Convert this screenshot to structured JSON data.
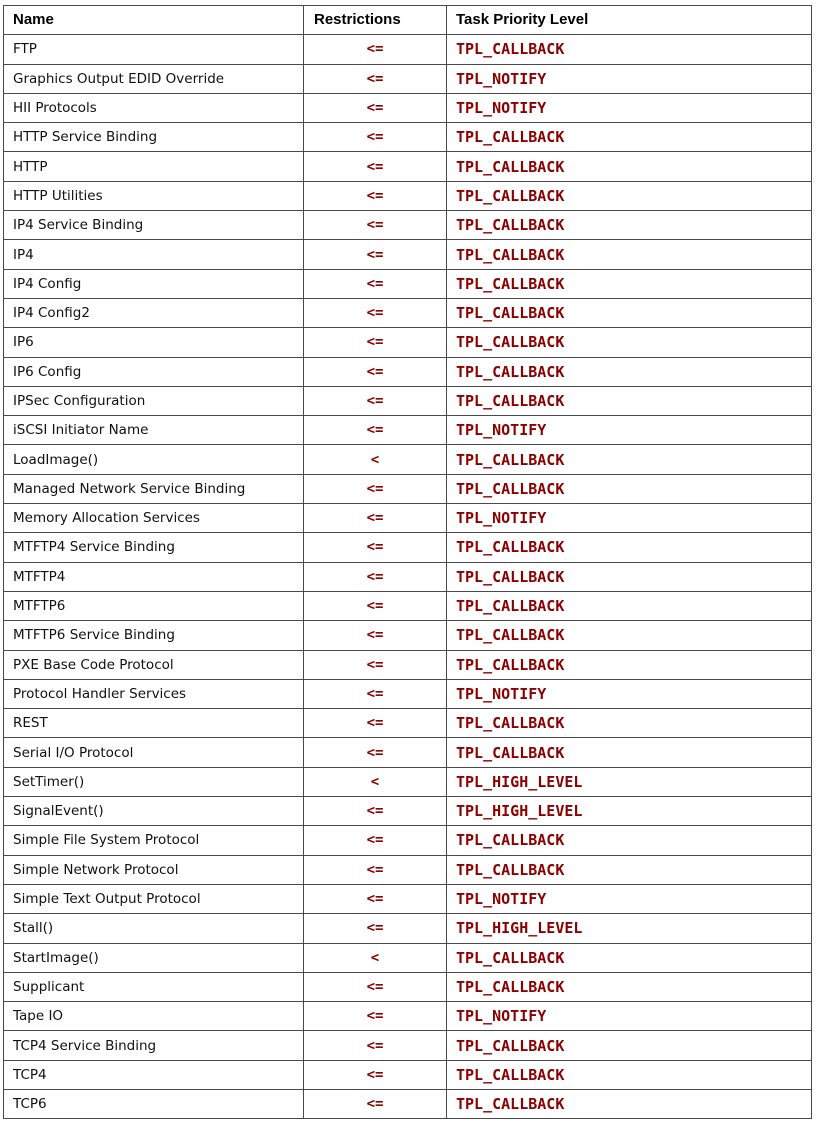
{
  "table": {
    "headers": [
      "Name",
      "Restrictions",
      "Task Priority Level"
    ],
    "rows": [
      {
        "name": "FTP",
        "restriction": "<=",
        "tpl": "TPL_CALLBACK"
      },
      {
        "name": "Graphics Output EDID Override",
        "restriction": "<=",
        "tpl": "TPL_NOTIFY"
      },
      {
        "name": "HII Protocols",
        "restriction": "<=",
        "tpl": "TPL_NOTIFY"
      },
      {
        "name": "HTTP Service Binding",
        "restriction": "<=",
        "tpl": "TPL_CALLBACK"
      },
      {
        "name": "HTTP",
        "restriction": "<=",
        "tpl": "TPL_CALLBACK"
      },
      {
        "name": "HTTP Utilities",
        "restriction": "<=",
        "tpl": "TPL_CALLBACK"
      },
      {
        "name": "IP4 Service Binding",
        "restriction": "<=",
        "tpl": "TPL_CALLBACK"
      },
      {
        "name": "IP4",
        "restriction": "<=",
        "tpl": "TPL_CALLBACK"
      },
      {
        "name": "IP4 Config",
        "restriction": "<=",
        "tpl": "TPL_CALLBACK"
      },
      {
        "name": "IP4 Config2",
        "restriction": "<=",
        "tpl": "TPL_CALLBACK"
      },
      {
        "name": "IP6",
        "restriction": "<=",
        "tpl": "TPL_CALLBACK"
      },
      {
        "name": "IP6 Config",
        "restriction": "<=",
        "tpl": "TPL_CALLBACK"
      },
      {
        "name": "IPSec Configuration",
        "restriction": "<=",
        "tpl": "TPL_CALLBACK"
      },
      {
        "name": "iSCSI Initiator Name",
        "restriction": "<=",
        "tpl": "TPL_NOTIFY"
      },
      {
        "name": "LoadImage()",
        "restriction": "<",
        "tpl": "TPL_CALLBACK"
      },
      {
        "name": "Managed Network Service Binding",
        "restriction": "<=",
        "tpl": "TPL_CALLBACK"
      },
      {
        "name": "Memory Allocation Services",
        "restriction": "<=",
        "tpl": "TPL_NOTIFY"
      },
      {
        "name": "MTFTP4 Service Binding",
        "restriction": "<=",
        "tpl": "TPL_CALLBACK"
      },
      {
        "name": "MTFTP4",
        "restriction": "<=",
        "tpl": "TPL_CALLBACK"
      },
      {
        "name": "MTFTP6",
        "restriction": "<=",
        "tpl": "TPL_CALLBACK"
      },
      {
        "name": "MTFTP6 Service Binding",
        "restriction": "<=",
        "tpl": "TPL_CALLBACK"
      },
      {
        "name": "PXE Base Code Protocol",
        "restriction": "<=",
        "tpl": "TPL_CALLBACK"
      },
      {
        "name": "Protocol Handler Services",
        "restriction": "<=",
        "tpl": "TPL_NOTIFY"
      },
      {
        "name": "REST",
        "restriction": "<=",
        "tpl": "TPL_CALLBACK"
      },
      {
        "name": "Serial I/O Protocol",
        "restriction": "<=",
        "tpl": "TPL_CALLBACK"
      },
      {
        "name": "SetTimer()",
        "restriction": "<",
        "tpl": "TPL_HIGH_LEVEL"
      },
      {
        "name": "SignalEvent()",
        "restriction": "<=",
        "tpl": "TPL_HIGH_LEVEL"
      },
      {
        "name": "Simple File System Protocol",
        "restriction": "<=",
        "tpl": "TPL_CALLBACK"
      },
      {
        "name": "Simple Network Protocol",
        "restriction": "<=",
        "tpl": "TPL_CALLBACK"
      },
      {
        "name": "Simple Text Output Protocol",
        "restriction": "<=",
        "tpl": "TPL_NOTIFY"
      },
      {
        "name": "Stall()",
        "restriction": "<=",
        "tpl": "TPL_HIGH_LEVEL"
      },
      {
        "name": "StartImage()",
        "restriction": "<",
        "tpl": "TPL_CALLBACK"
      },
      {
        "name": "Supplicant",
        "restriction": "<=",
        "tpl": "TPL_CALLBACK"
      },
      {
        "name": "Tape IO",
        "restriction": "<=",
        "tpl": "TPL_NOTIFY"
      },
      {
        "name": "TCP4 Service Binding",
        "restriction": "<=",
        "tpl": "TPL_CALLBACK"
      },
      {
        "name": "TCP4",
        "restriction": "<=",
        "tpl": "TPL_CALLBACK"
      },
      {
        "name": "TCP6",
        "restriction": "<=",
        "tpl": "TPL_CALLBACK"
      }
    ]
  },
  "colors": {
    "code_text": "#8b0000",
    "border": "#4a4a4a"
  }
}
